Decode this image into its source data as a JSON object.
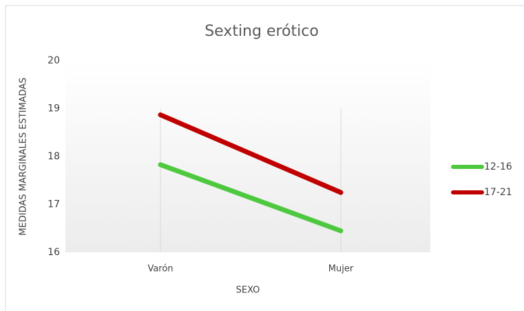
{
  "chart_data": {
    "type": "line",
    "title": "Sexting erótico",
    "x_label": "SEXO",
    "y_label": "MEDIDAS MARGINALES ESTIMADAS",
    "categories": [
      "Varón",
      "Mujer"
    ],
    "series": [
      {
        "name": "12-16",
        "color": "#4ec93f",
        "values": [
          17.83,
          16.45
        ]
      },
      {
        "name": "17-21",
        "color": "#c00000",
        "values": [
          18.87,
          17.25
        ]
      }
    ],
    "ylim": [
      16,
      20
    ],
    "yticks": [
      16,
      17,
      18,
      19,
      20
    ],
    "legend": "right"
  }
}
